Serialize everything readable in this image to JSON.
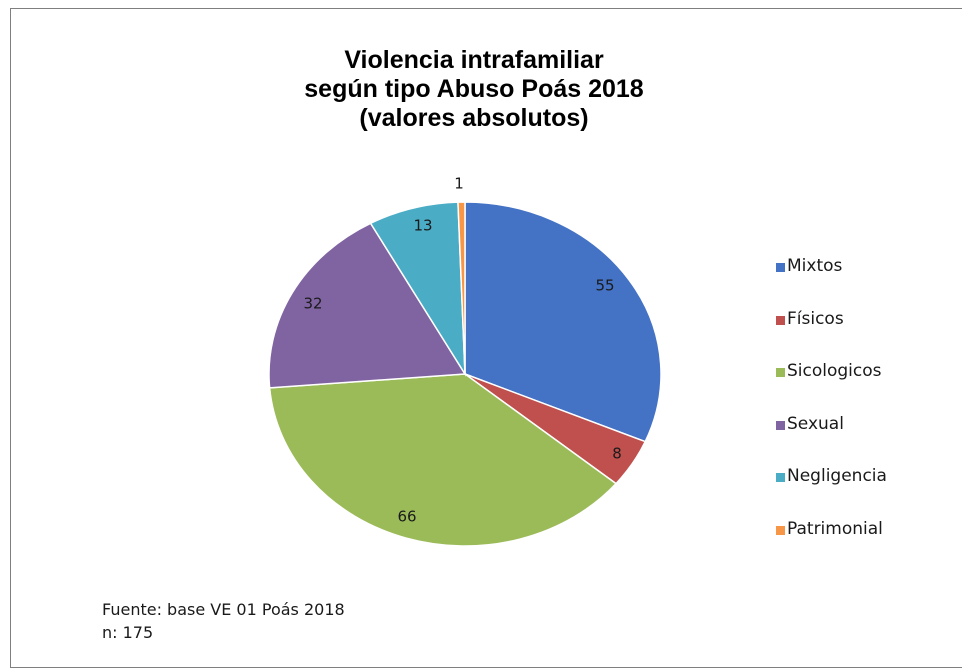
{
  "chart_data": {
    "type": "pie",
    "title_lines": [
      "Violencia intrafamiliar",
      "según tipo Abuso  Poás 2018",
      "(valores absolutos)"
    ],
    "categories": [
      "Mixtos",
      "Físicos",
      "Sicologicos",
      "Sexual",
      "Negligencia",
      "Patrimonial"
    ],
    "values": [
      55,
      8,
      66,
      32,
      13,
      1
    ],
    "data_labels": [
      "55",
      "8",
      "66",
      "32",
      "13",
      "1"
    ],
    "colors": [
      "#4472c4",
      "#c0504d",
      "#9bbb59",
      "#8064a2",
      "#4bacc6",
      "#f79646"
    ],
    "legend_position": "right"
  },
  "footer": {
    "source": "Fuente: base VE 01 Poás 2018",
    "n": "n: 175"
  }
}
